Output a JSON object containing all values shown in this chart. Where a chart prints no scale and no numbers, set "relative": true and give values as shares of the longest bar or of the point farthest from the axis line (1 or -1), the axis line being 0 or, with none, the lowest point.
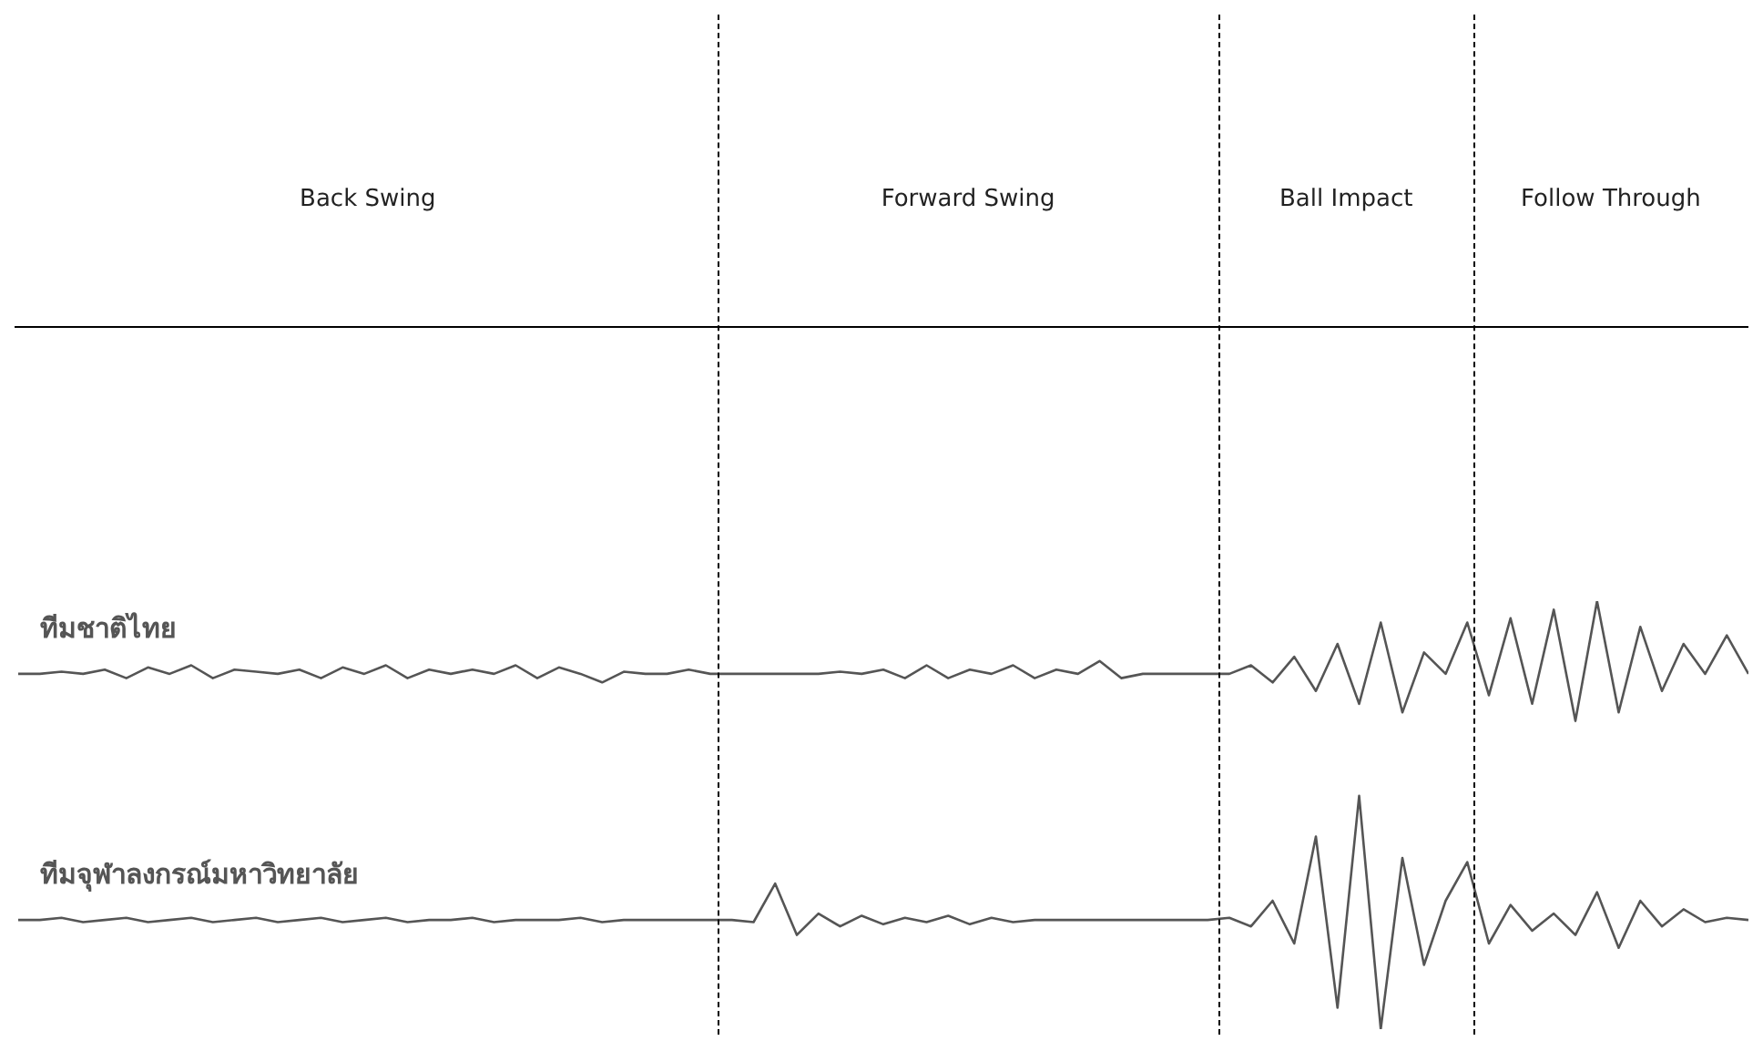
{
  "chart_data": {
    "type": "line",
    "relative": true,
    "legend": false,
    "line_style": "solid",
    "marker": "none",
    "annotations": [
      "Back Swing",
      "Forward Swing",
      "Ball Impact",
      "Follow Through"
    ],
    "categories": [
      null,
      null,
      null,
      null,
      null,
      null,
      null,
      null,
      null,
      null,
      null,
      null,
      null,
      null,
      null,
      null,
      null,
      null,
      null,
      null,
      null,
      null,
      null,
      null,
      null,
      null,
      null,
      null,
      null,
      null,
      null,
      null,
      null,
      null,
      null,
      null,
      null,
      null,
      null,
      null,
      null,
      null,
      null,
      null,
      null,
      null,
      null,
      null,
      null,
      null,
      null,
      null,
      null,
      null,
      null,
      null,
      null,
      null,
      null,
      null,
      null,
      null,
      null,
      null,
      null,
      null,
      null,
      null,
      null,
      null,
      null,
      null,
      null,
      null,
      null,
      null,
      null,
      null,
      null,
      null,
      null
    ],
    "series": [
      {
        "name": "ทีมชาติไทย",
        "color": "#555555",
        "values": [
          0.83,
          0.83,
          0.835,
          0.83,
          0.84,
          0.82,
          0.845,
          0.83,
          0.85,
          0.82,
          0.84,
          0.835,
          0.83,
          0.84,
          0.82,
          0.845,
          0.83,
          0.85,
          0.82,
          0.84,
          0.83,
          0.84,
          0.83,
          0.85,
          0.82,
          0.845,
          0.83,
          0.81,
          0.835,
          0.83,
          0.83,
          0.84,
          0.83,
          0.83,
          0.83,
          0.83,
          0.83,
          0.83,
          0.835,
          0.83,
          0.84,
          0.82,
          0.85,
          0.82,
          0.84,
          0.83,
          0.85,
          0.82,
          0.84,
          0.83,
          0.86,
          0.82,
          0.83,
          0.83,
          0.83,
          0.83,
          0.83,
          0.85,
          0.81,
          0.87,
          0.79,
          0.9,
          0.76,
          0.95,
          0.74,
          0.88,
          0.83,
          0.95,
          0.78,
          0.96,
          0.76,
          0.98,
          0.72,
          1.0,
          0.74,
          0.94,
          0.79,
          0.9,
          0.83,
          0.92,
          0.83
        ]
      },
      {
        "name": "ทีมจุฬาลงกรณ์มหาวิทยาลัย",
        "color": "#555555",
        "values": [
          0.255,
          0.255,
          0.26,
          0.25,
          0.255,
          0.26,
          0.25,
          0.255,
          0.26,
          0.25,
          0.255,
          0.26,
          0.25,
          0.255,
          0.26,
          0.25,
          0.255,
          0.26,
          0.25,
          0.255,
          0.255,
          0.26,
          0.25,
          0.255,
          0.255,
          0.255,
          0.26,
          0.25,
          0.255,
          0.255,
          0.255,
          0.255,
          0.255,
          0.255,
          0.25,
          0.34,
          0.22,
          0.27,
          0.24,
          0.265,
          0.245,
          0.26,
          0.25,
          0.265,
          0.245,
          0.26,
          0.25,
          0.255,
          0.255,
          0.255,
          0.255,
          0.255,
          0.255,
          0.255,
          0.255,
          0.255,
          0.26,
          0.24,
          0.3,
          0.2,
          0.45,
          0.05,
          0.545,
          0.0,
          0.4,
          0.15,
          0.3,
          0.39,
          0.2,
          0.29,
          0.23,
          0.27,
          0.22,
          0.32,
          0.19,
          0.3,
          0.24,
          0.28,
          0.25,
          0.26,
          0.255
        ]
      }
    ]
  }
}
